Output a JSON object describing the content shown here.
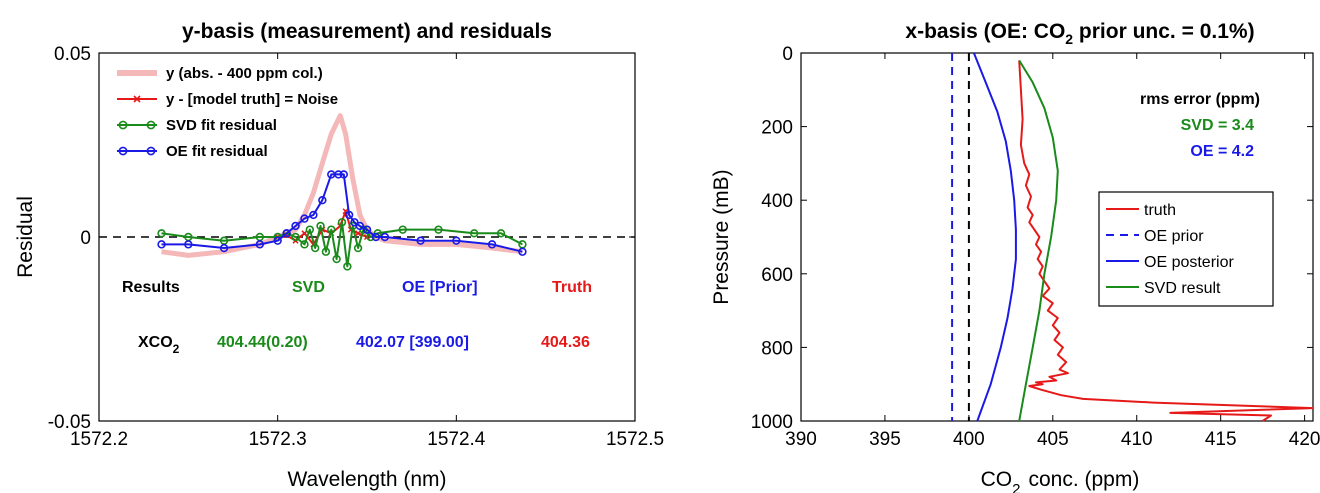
{
  "chart_data": [
    {
      "type": "line",
      "title": "y-basis (measurement) and residuals",
      "xlabel": "Wavelength (nm)",
      "ylabel": "Residual",
      "xlim": [
        1572.2,
        1572.5
      ],
      "ylim": [
        -0.05,
        0.05
      ],
      "xticks": [
        "1572.2",
        "1572.3",
        "1572.4",
        "1572.5"
      ],
      "yticks": [
        "-0.05",
        "0",
        "0.05"
      ],
      "legend_position": "top-left",
      "zero_line": true,
      "series": [
        {
          "name": "y (abs. - 400 ppm col.)",
          "color": "#f5b8b8",
          "x": [
            1572.235,
            1572.25,
            1572.27,
            1572.29,
            1572.3,
            1572.31,
            1572.315,
            1572.32,
            1572.325,
            1572.33,
            1572.335,
            1572.338,
            1572.342,
            1572.346,
            1572.35,
            1572.355,
            1572.36,
            1572.38,
            1572.4,
            1572.42,
            1572.437
          ],
          "values": [
            -0.004,
            -0.005,
            -0.004,
            -0.002,
            0.0,
            0.002,
            0.006,
            0.012,
            0.02,
            0.028,
            0.033,
            0.028,
            0.016,
            0.006,
            0.002,
            0.0,
            -0.001,
            -0.002,
            -0.002,
            -0.003,
            -0.004
          ]
        },
        {
          "name": "y - [model truth] = Noise",
          "color": "#e61919",
          "x": [
            1572.3,
            1572.305,
            1572.31,
            1572.315,
            1572.32,
            1572.325,
            1572.33,
            1572.335,
            1572.338,
            1572.341,
            1572.345,
            1572.35
          ],
          "values": [
            0.0,
            0.0005,
            -0.001,
            0.001,
            -0.002,
            0.002,
            0.001,
            0.003,
            0.007,
            0.002,
            0.001,
            0.0
          ]
        },
        {
          "name": "SVD fit residual",
          "color": "#1a8a1a",
          "x": [
            1572.235,
            1572.25,
            1572.27,
            1572.29,
            1572.3,
            1572.305,
            1572.31,
            1572.315,
            1572.318,
            1572.321,
            1572.324,
            1572.327,
            1572.33,
            1572.333,
            1572.336,
            1572.339,
            1572.342,
            1572.345,
            1572.348,
            1572.352,
            1572.356,
            1572.37,
            1572.39,
            1572.41,
            1572.425,
            1572.437
          ],
          "values": [
            0.001,
            0.0,
            -0.001,
            0.0,
            0.0,
            0.001,
            0.0,
            -0.002,
            0.002,
            -0.003,
            0.003,
            -0.004,
            0.002,
            -0.006,
            0.004,
            -0.008,
            0.003,
            -0.003,
            0.002,
            0.0,
            0.001,
            0.002,
            0.002,
            0.001,
            0.001,
            -0.002
          ]
        },
        {
          "name": "OE fit residual",
          "color": "#1a1ae6",
          "x": [
            1572.235,
            1572.25,
            1572.27,
            1572.29,
            1572.3,
            1572.305,
            1572.31,
            1572.315,
            1572.32,
            1572.325,
            1572.33,
            1572.334,
            1572.337,
            1572.34,
            1572.343,
            1572.346,
            1572.35,
            1572.355,
            1572.36,
            1572.38,
            1572.4,
            1572.42,
            1572.437
          ],
          "values": [
            -0.002,
            -0.002,
            -0.003,
            -0.002,
            -0.001,
            0.001,
            0.003,
            0.005,
            0.006,
            0.01,
            0.017,
            0.017,
            0.017,
            0.006,
            0.004,
            0.003,
            0.002,
            0.0,
            0.0,
            -0.001,
            -0.001,
            -0.002,
            -0.004
          ]
        }
      ],
      "annotations": {
        "results_label": "Results",
        "svd_label": "SVD",
        "oe_label": "OE [Prior]",
        "truth_label": "Truth",
        "xco2_label": "XCO",
        "xco2_sub": "2",
        "svd_value": "404.44(0.20)",
        "oe_value": "402.07 [399.00]",
        "truth_value": "404.36"
      }
    },
    {
      "type": "line",
      "title": "x-basis (OE: CO",
      "title_sub": "2",
      "title_rest": " prior unc. = 0.1%)",
      "xlabel": "CO",
      "xlabel_sub": "2",
      "xlabel_rest": "conc. (ppm)",
      "ylabel": "Pressure (mB)",
      "xlim": [
        390,
        420.5
      ],
      "ylim": [
        1000,
        0
      ],
      "xticks": [
        "390",
        "395",
        "400",
        "405",
        "410",
        "415",
        "420"
      ],
      "yticks": [
        "0",
        "200",
        "400",
        "600",
        "800",
        "1000"
      ],
      "legend_position": "right",
      "series": [
        {
          "name": "truth",
          "color": "#e61919",
          "x": [
            403.0,
            403.1,
            403.2,
            403.1,
            403.3,
            403.6,
            403.4,
            403.7,
            403.5,
            403.8,
            403.6,
            403.9,
            404.2,
            404.0,
            404.3,
            404.1,
            404.4,
            404.2,
            404.5,
            404.8,
            404.4,
            405.0,
            404.7,
            405.3,
            405.0,
            405.4,
            405.1,
            405.6,
            405.3,
            405.8,
            405.4,
            405.9,
            404.8,
            405.2,
            404.0,
            404.4,
            403.6,
            404.3,
            405.5,
            406.8,
            411.0,
            420.5,
            412.0,
            418.0,
            417.5
          ],
          "values": [
            20,
            100,
            180,
            250,
            300,
            330,
            360,
            390,
            420,
            440,
            460,
            480,
            500,
            520,
            540,
            560,
            580,
            600,
            620,
            640,
            660,
            680,
            700,
            720,
            740,
            760,
            780,
            800,
            820,
            840,
            860,
            870,
            880,
            890,
            895,
            900,
            905,
            915,
            930,
            940,
            950,
            965,
            978,
            985,
            1000
          ]
        },
        {
          "name": "OE prior",
          "color": "#1a1ae6",
          "dashed": true,
          "x": [
            399.0,
            399.0
          ],
          "values": [
            0,
            1000
          ]
        },
        {
          "name": "OE posterior",
          "color": "#1a1ae6",
          "x": [
            400.3,
            401.0,
            401.7,
            402.2,
            402.5,
            402.7,
            402.8,
            402.8,
            402.6,
            402.3,
            401.9,
            401.3,
            400.5
          ],
          "values": [
            0,
            80,
            160,
            240,
            320,
            400,
            480,
            560,
            640,
            720,
            800,
            900,
            1000
          ]
        },
        {
          "name": "SVD result",
          "color": "#1a8a1a",
          "x": [
            403.0,
            403.8,
            404.5,
            405.0,
            405.3,
            405.2,
            404.9,
            404.5,
            404.2,
            403.8,
            403.4,
            403.0
          ],
          "values": [
            20,
            80,
            150,
            230,
            320,
            400,
            500,
            600,
            700,
            800,
            900,
            1000
          ]
        },
        {
          "name": "",
          "color": "#000000",
          "dashed": true,
          "x": [
            400.0,
            400.0
          ],
          "values": [
            0,
            1000
          ]
        }
      ],
      "annotations": {
        "rms_label": "rms error (ppm)",
        "svd_rms": "SVD  = 3.4",
        "oe_rms": "OE  = 4.2"
      }
    }
  ]
}
